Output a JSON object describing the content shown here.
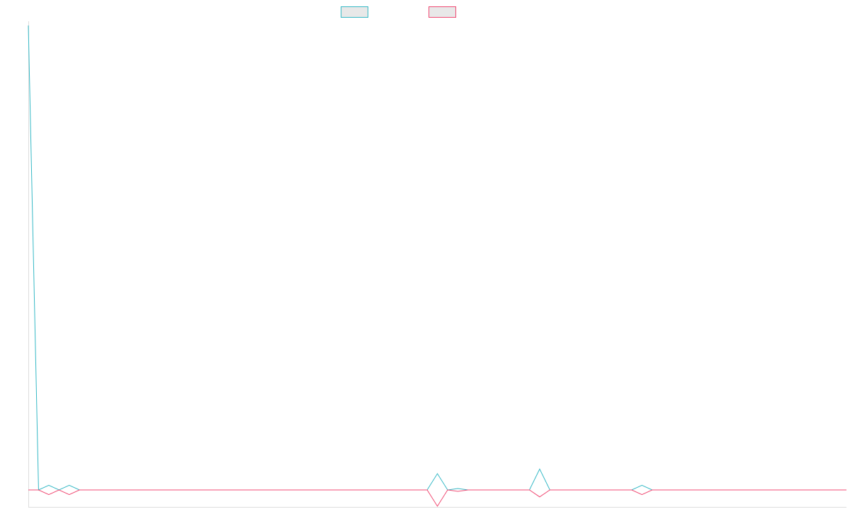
{
  "chart_data": {
    "type": "line",
    "title": "",
    "xlabel": "",
    "ylabel": "",
    "grid": false,
    "legend_position": "top-center",
    "x_count": 81,
    "ylim": [
      -5,
      100
    ],
    "series": [
      {
        "color": "#36b9c6",
        "values": [
          100,
          0,
          1,
          0,
          1,
          0,
          0,
          0,
          0,
          0,
          0,
          0,
          0,
          0,
          0,
          0,
          0,
          0,
          0,
          0,
          0,
          0,
          0,
          0,
          0,
          0,
          0,
          0,
          0,
          0,
          0,
          0,
          0,
          0,
          0,
          0,
          0,
          0,
          0,
          0,
          3.5,
          0,
          0.3,
          0,
          0,
          0,
          0,
          0,
          0,
          0,
          4.5,
          0,
          0,
          0,
          0,
          0,
          0,
          0,
          0,
          0,
          1,
          0,
          0,
          0,
          0,
          0,
          0,
          0,
          0,
          0,
          0,
          0,
          0,
          0,
          0,
          0,
          0,
          0,
          0,
          0,
          0
        ]
      },
      {
        "color": "#f04a73",
        "values": [
          0,
          0,
          -1,
          0,
          -1,
          0,
          0,
          0,
          0,
          0,
          0,
          0,
          0,
          0,
          0,
          0,
          0,
          0,
          0,
          0,
          0,
          0,
          0,
          0,
          0,
          0,
          0,
          0,
          0,
          0,
          0,
          0,
          0,
          0,
          0,
          0,
          0,
          0,
          0,
          0,
          -3.5,
          0,
          -0.3,
          0,
          0,
          0,
          0,
          0,
          0,
          0,
          -1.5,
          0,
          0,
          0,
          0,
          0,
          0,
          0,
          0,
          0,
          -1,
          0,
          0,
          0,
          0,
          0,
          0,
          0,
          0,
          0,
          0,
          0,
          0,
          0,
          0,
          0,
          0,
          0,
          0,
          0,
          0
        ]
      }
    ]
  }
}
